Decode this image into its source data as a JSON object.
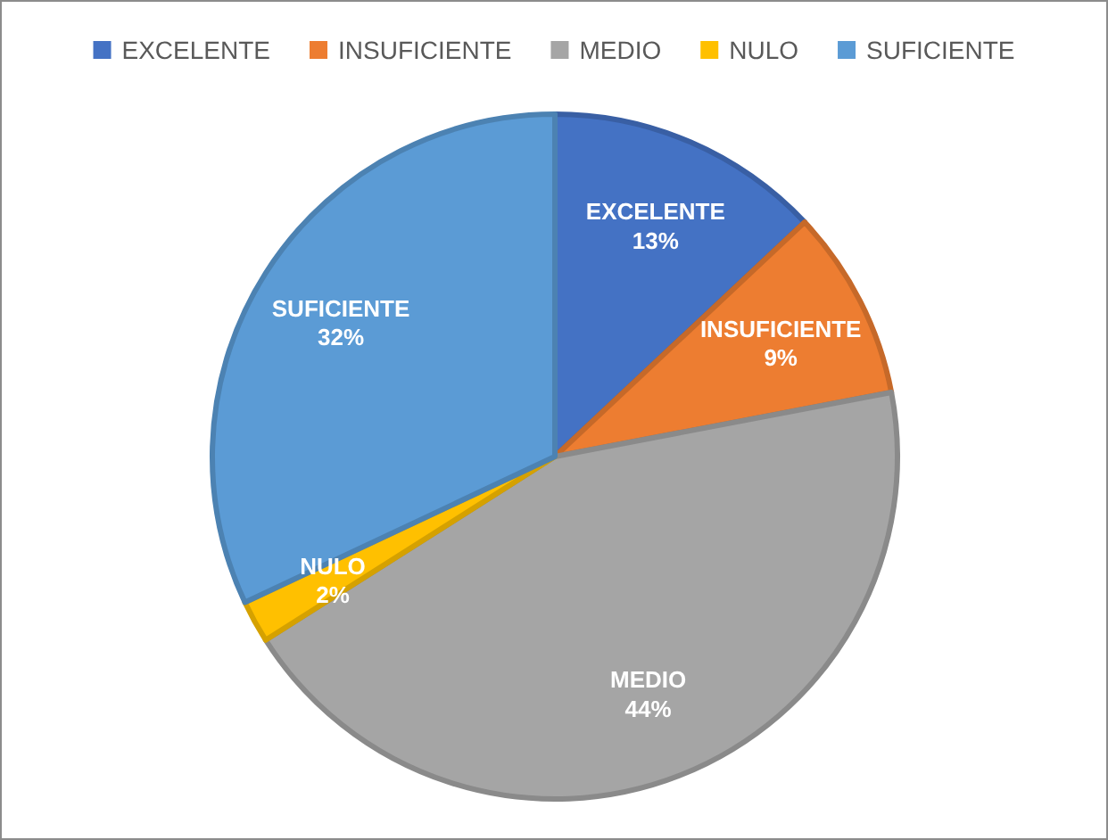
{
  "chart_data": {
    "type": "pie",
    "categories": [
      "EXCELENTE",
      "INSUFICIENTE",
      "MEDIO",
      "NULO",
      "SUFICIENTE"
    ],
    "values": [
      13,
      9,
      44,
      2,
      32
    ],
    "colors": [
      "#4472c4",
      "#ed7d31",
      "#a5a5a5",
      "#ffc000",
      "#5b9bd5"
    ],
    "value_labels": [
      "13%",
      "9%",
      "44%",
      "2%",
      "32%"
    ],
    "legend": "top"
  }
}
